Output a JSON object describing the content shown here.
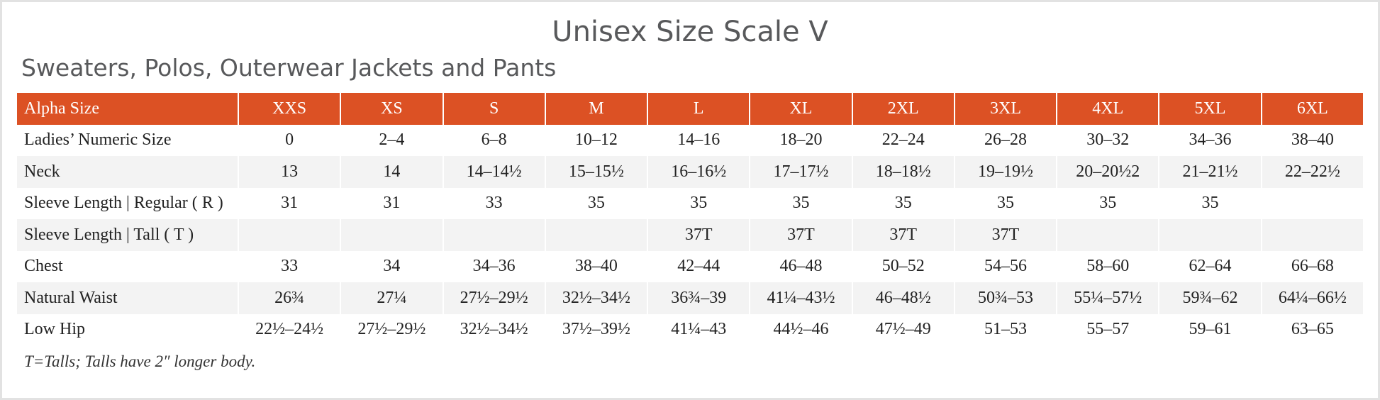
{
  "header": {
    "title": "Unisex Size Scale V",
    "subtitle": "Sweaters, Polos, Outerwear Jackets and Pants"
  },
  "table": {
    "columns": [
      "Alpha Size",
      "XXS",
      "XS",
      "S",
      "M",
      "L",
      "XL",
      "2XL",
      "3XL",
      "4XL",
      "5XL",
      "6XL"
    ],
    "rows": [
      [
        "Ladies’ Numeric Size",
        "0",
        "2–4",
        "6–8",
        "10–12",
        "14–16",
        "18–20",
        "22–24",
        "26–28",
        "30–32",
        "34–36",
        "38–40"
      ],
      [
        "Neck",
        "13",
        "14",
        "14–14½",
        "15–15½",
        "16–16½",
        "17–17½",
        "18–18½",
        "19–19½",
        "20–20½2",
        "21–21½",
        "22–22½"
      ],
      [
        "Sleeve Length | Regular ( R )",
        "31",
        "31",
        "33",
        "35",
        "35",
        "35",
        "35",
        "35",
        "35",
        "35",
        null
      ],
      [
        "Sleeve Length | Tall ( T )",
        null,
        null,
        null,
        null,
        "37T",
        "37T",
        "37T",
        "37T",
        null,
        null,
        null
      ],
      [
        "Chest",
        "33",
        "34",
        "34–36",
        "38–40",
        "42–44",
        "46–48",
        "50–52",
        "54–56",
        "58–60",
        "62–64",
        "66–68"
      ],
      [
        "Natural Waist",
        "26¾",
        "27¼",
        "27½–29½",
        "32½–34½",
        "36¾–39",
        "41¼–43½",
        "46–48½",
        "50¾–53",
        "55¼–57½",
        "59¾–62",
        "64¼–66½"
      ],
      [
        "Low Hip",
        "22½–24½",
        "27½–29½",
        "32½–34½",
        "37½–39½",
        "41¼–43",
        "44½–46",
        "47½–49",
        "51–53",
        "55–57",
        "59–61",
        "63–65"
      ]
    ]
  },
  "footnote": "T=Talls; Talls have 2″ longer body."
}
